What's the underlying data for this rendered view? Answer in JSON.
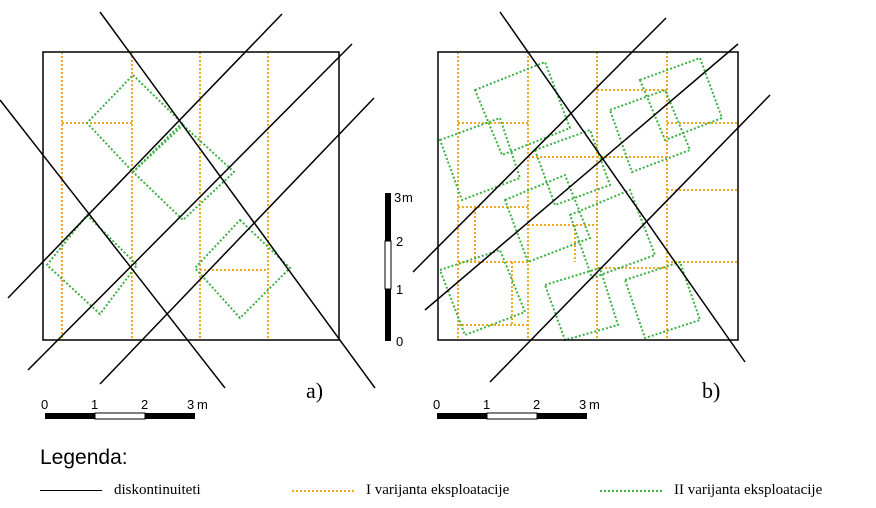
{
  "panels": [
    {
      "id": "a",
      "label": "a)"
    },
    {
      "id": "b",
      "label": "b)"
    }
  ],
  "scale_horizontal": {
    "ticks": [
      "0",
      "1",
      "2",
      "3"
    ],
    "unit": "m"
  },
  "scale_vertical": {
    "ticks": [
      "0",
      "1",
      "2",
      "3"
    ],
    "unit": "m"
  },
  "legend": {
    "title": "Legenda:",
    "items": [
      {
        "label": "diskontinuiteti",
        "color": "#000000"
      },
      {
        "label": "I varijanta eksploatacije",
        "color": "#f0a820"
      },
      {
        "label": "II varijanta eksploatacije",
        "color": "#3cb043"
      }
    ]
  }
}
